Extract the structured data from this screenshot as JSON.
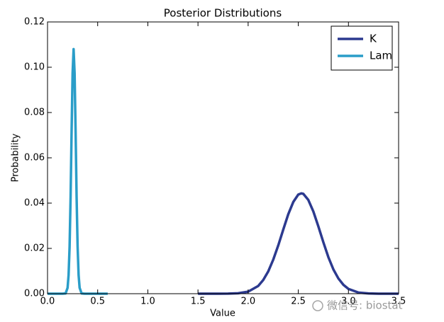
{
  "chart_data": {
    "type": "line",
    "title": "Posterior Distributions",
    "x_label": "Value",
    "y_label": "Probability",
    "xlim": [
      0,
      3.5
    ],
    "ylim": [
      0,
      0.12
    ],
    "xticks": [
      {
        "value": 0,
        "label": "0.0"
      },
      0.5,
      {
        "value": 1,
        "label": "1.0"
      },
      1.5,
      {
        "value": 2,
        "label": "2.0"
      },
      2.5,
      {
        "value": 3,
        "label": "3.0"
      },
      3.5
    ],
    "yticks": [
      {
        "value": 0,
        "label": "0.00"
      },
      {
        "value": 0.02,
        "label": "0.02"
      },
      {
        "value": 0.04,
        "label": "0.04"
      },
      {
        "value": 0.06,
        "label": "0.06"
      },
      {
        "value": 0.08,
        "label": "0.08"
      },
      {
        "value": 0.1,
        "label": "0.10"
      },
      {
        "value": 0.12,
        "label": "0.12"
      }
    ],
    "legend": "upper right",
    "series": [
      {
        "name": "K",
        "color": "#2c3a8f",
        "x": [
          1.5,
          1.7,
          1.8,
          1.9,
          2.0,
          2.1,
          2.15,
          2.2,
          2.25,
          2.3,
          2.35,
          2.4,
          2.45,
          2.5,
          2.53,
          2.55,
          2.6,
          2.65,
          2.7,
          2.75,
          2.8,
          2.85,
          2.9,
          2.95,
          3.0,
          3.1,
          3.2,
          3.3,
          3.5
        ],
        "values": [
          0,
          0,
          3e-05,
          0.0002,
          0.0009,
          0.0034,
          0.006,
          0.0098,
          0.015,
          0.0213,
          0.0283,
          0.0351,
          0.0405,
          0.0438,
          0.0443,
          0.0441,
          0.0414,
          0.0363,
          0.0297,
          0.0227,
          0.0161,
          0.0107,
          0.0067,
          0.0039,
          0.0021,
          0.0005,
          0.0001,
          0,
          0
        ]
      },
      {
        "name": "Lam",
        "color": "#2a9dc8",
        "x": [
          0,
          0.15,
          0.18,
          0.2,
          0.21,
          0.22,
          0.23,
          0.24,
          0.25,
          0.26,
          0.27,
          0.28,
          0.29,
          0.3,
          0.31,
          0.32,
          0.34,
          0.37,
          0.6
        ],
        "values": [
          0,
          0,
          0.0001,
          0.0026,
          0.0082,
          0.0207,
          0.0426,
          0.0715,
          0.0974,
          0.108,
          0.0974,
          0.0715,
          0.0426,
          0.0207,
          0.0082,
          0.0026,
          0.0001,
          0,
          0
        ]
      }
    ]
  },
  "watermark": "微信号: biostat"
}
